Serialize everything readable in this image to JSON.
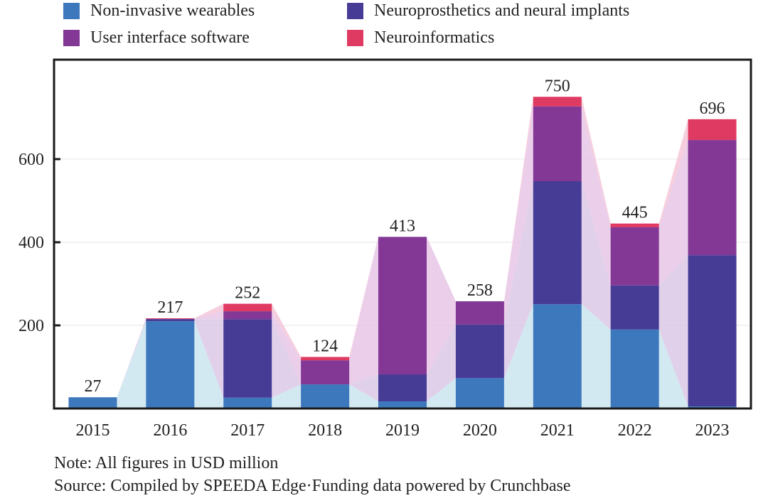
{
  "chart_data": {
    "type": "bar",
    "stacked": true,
    "title": "",
    "xlabel": "",
    "ylabel": "",
    "ylim": [
      0,
      750
    ],
    "yticks": [
      200,
      400,
      600
    ],
    "grid": true,
    "legend_position": "top",
    "categories": [
      "2015",
      "2016",
      "2017",
      "2018",
      "2019",
      "2020",
      "2021",
      "2022",
      "2023"
    ],
    "series": [
      {
        "name": "Non-invasive wearables",
        "color": "#3d78bd",
        "area_color": "#cbe5f0",
        "values": [
          27,
          210,
          26,
          58,
          17,
          73,
          251,
          190,
          5
        ]
      },
      {
        "name": "Neuroprosthetics and neural implants",
        "color": "#463c96",
        "area_color": "#dcc8e6",
        "values": [
          0,
          5,
          189,
          0,
          65,
          129,
          296,
          106,
          364
        ]
      },
      {
        "name": "User interface software",
        "color": "#833895",
        "area_color": "#e6c6e6",
        "values": [
          0,
          1,
          19,
          58,
          331,
          56,
          180,
          140,
          277
        ]
      },
      {
        "name": "Neuroinformatics",
        "color": "#df3a62",
        "area_color": "#f4c6d8",
        "values": [
          0,
          1,
          18,
          8,
          0,
          0,
          23,
          9,
          50
        ]
      }
    ],
    "totals": [
      27,
      217,
      252,
      124,
      413,
      258,
      750,
      445,
      696
    ],
    "total_labels": [
      "27",
      "217",
      "252",
      "124",
      "413",
      "258",
      "750",
      "445",
      "696"
    ]
  },
  "legend": {
    "items": [
      {
        "label": "Non-invasive wearables",
        "color": "#3d78bd"
      },
      {
        "label": "Neuroprosthetics and neural implants",
        "color": "#463c96"
      },
      {
        "label": "User interface software",
        "color": "#833895"
      },
      {
        "label": "Neuroinformatics",
        "color": "#df3a62"
      }
    ]
  },
  "notes": {
    "note": "Note: All figures in USD million",
    "source": "Source: Compiled by SPEEDA Edge·Funding data powered by Crunchbase"
  }
}
